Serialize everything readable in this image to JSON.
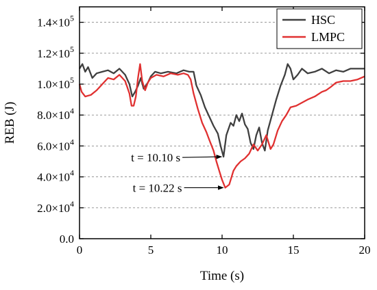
{
  "chart_data": {
    "type": "line",
    "xlabel": "Time (s)",
    "ylabel": "REB (J)",
    "xlim": [
      0,
      20
    ],
    "ylim": [
      0,
      150000
    ],
    "x_ticks": [
      {
        "value": 0,
        "label": "0"
      },
      {
        "value": 5,
        "label": "5"
      },
      {
        "value": 10,
        "label": "10"
      },
      {
        "value": 15,
        "label": "15"
      },
      {
        "value": 20,
        "label": "20"
      }
    ],
    "y_ticks": [
      {
        "value": 0,
        "base": "0.0",
        "exp": ""
      },
      {
        "value": 20000,
        "base": "2.0×10",
        "exp": "4"
      },
      {
        "value": 40000,
        "base": "4.0×10",
        "exp": "4"
      },
      {
        "value": 60000,
        "base": "6.0×10",
        "exp": "4"
      },
      {
        "value": 80000,
        "base": "8.0×10",
        "exp": "4"
      },
      {
        "value": 100000,
        "base": "1.0×10",
        "exp": "5"
      },
      {
        "value": 120000,
        "base": "1.2×10",
        "exp": "5"
      },
      {
        "value": 140000,
        "base": "1.4×10",
        "exp": "5"
      }
    ],
    "grid": "horizontal dashed",
    "legend_position": "top-right",
    "series": [
      {
        "name": "HSC",
        "color": "#3f3f3f",
        "points": [
          [
            0,
            110000
          ],
          [
            0.2,
            113000
          ],
          [
            0.4,
            108000
          ],
          [
            0.6,
            111000
          ],
          [
            0.9,
            104000
          ],
          [
            1.2,
            107000
          ],
          [
            1.6,
            108000
          ],
          [
            2.0,
            109000
          ],
          [
            2.4,
            107000
          ],
          [
            2.8,
            110000
          ],
          [
            3.2,
            106000
          ],
          [
            3.5,
            100000
          ],
          [
            3.7,
            92000
          ],
          [
            3.9,
            95000
          ],
          [
            4.1,
            99000
          ],
          [
            4.3,
            104000
          ],
          [
            4.5,
            97000
          ],
          [
            4.8,
            101000
          ],
          [
            5.0,
            105000
          ],
          [
            5.3,
            108000
          ],
          [
            5.7,
            107000
          ],
          [
            6.2,
            108000
          ],
          [
            6.8,
            107000
          ],
          [
            7.3,
            109000
          ],
          [
            7.7,
            108000
          ],
          [
            8.0,
            108000
          ],
          [
            8.2,
            99000
          ],
          [
            8.5,
            93000
          ],
          [
            8.8,
            85000
          ],
          [
            9.1,
            79000
          ],
          [
            9.4,
            73000
          ],
          [
            9.7,
            68000
          ],
          [
            9.9,
            60000
          ],
          [
            10.1,
            53000
          ],
          [
            10.3,
            67000
          ],
          [
            10.6,
            75000
          ],
          [
            10.8,
            73000
          ],
          [
            11.0,
            80000
          ],
          [
            11.2,
            76000
          ],
          [
            11.4,
            81000
          ],
          [
            11.6,
            74000
          ],
          [
            11.8,
            71000
          ],
          [
            12.0,
            62000
          ],
          [
            12.2,
            58000
          ],
          [
            12.4,
            67000
          ],
          [
            12.6,
            72000
          ],
          [
            12.8,
            62000
          ],
          [
            13.0,
            57000
          ],
          [
            13.2,
            70000
          ],
          [
            13.5,
            80000
          ],
          [
            13.8,
            90000
          ],
          [
            14.1,
            99000
          ],
          [
            14.4,
            106000
          ],
          [
            14.6,
            113000
          ],
          [
            14.8,
            110000
          ],
          [
            15.0,
            103000
          ],
          [
            15.3,
            106000
          ],
          [
            15.6,
            110000
          ],
          [
            16.0,
            107000
          ],
          [
            16.5,
            108000
          ],
          [
            17.0,
            110000
          ],
          [
            17.5,
            107000
          ],
          [
            18.0,
            109000
          ],
          [
            18.5,
            108000
          ],
          [
            19.0,
            110000
          ],
          [
            19.5,
            110000
          ],
          [
            20.0,
            110000
          ]
        ]
      },
      {
        "name": "LMPC",
        "color": "#e03030",
        "points": [
          [
            0,
            100000
          ],
          [
            0.15,
            95000
          ],
          [
            0.4,
            92000
          ],
          [
            0.8,
            93000
          ],
          [
            1.2,
            96000
          ],
          [
            1.6,
            100000
          ],
          [
            2.0,
            104000
          ],
          [
            2.4,
            103000
          ],
          [
            2.8,
            106000
          ],
          [
            3.2,
            102000
          ],
          [
            3.5,
            94000
          ],
          [
            3.65,
            86000
          ],
          [
            3.8,
            86000
          ],
          [
            3.95,
            92000
          ],
          [
            4.1,
            104000
          ],
          [
            4.25,
            113000
          ],
          [
            4.4,
            102000
          ],
          [
            4.6,
            96000
          ],
          [
            4.8,
            101000
          ],
          [
            5.0,
            104000
          ],
          [
            5.4,
            106000
          ],
          [
            5.9,
            105000
          ],
          [
            6.4,
            107000
          ],
          [
            6.9,
            106000
          ],
          [
            7.3,
            107000
          ],
          [
            7.6,
            106000
          ],
          [
            7.8,
            103000
          ],
          [
            8.0,
            94000
          ],
          [
            8.3,
            84000
          ],
          [
            8.6,
            75000
          ],
          [
            8.9,
            69000
          ],
          [
            9.1,
            64000
          ],
          [
            9.4,
            57000
          ],
          [
            9.6,
            50000
          ],
          [
            9.8,
            44000
          ],
          [
            10.0,
            38000
          ],
          [
            10.22,
            33000
          ],
          [
            10.5,
            35000
          ],
          [
            10.8,
            44000
          ],
          [
            11.0,
            47000
          ],
          [
            11.3,
            50000
          ],
          [
            11.6,
            52000
          ],
          [
            11.9,
            55000
          ],
          [
            12.2,
            61000
          ],
          [
            12.5,
            57000
          ],
          [
            12.8,
            61000
          ],
          [
            13.1,
            67000
          ],
          [
            13.4,
            58000
          ],
          [
            13.6,
            61000
          ],
          [
            13.9,
            70000
          ],
          [
            14.2,
            76000
          ],
          [
            14.5,
            80000
          ],
          [
            14.8,
            85000
          ],
          [
            15.2,
            86000
          ],
          [
            15.6,
            88000
          ],
          [
            16.0,
            90000
          ],
          [
            16.5,
            92000
          ],
          [
            17.0,
            95000
          ],
          [
            17.3,
            96000
          ],
          [
            17.6,
            98000
          ],
          [
            18.0,
            101000
          ],
          [
            18.5,
            102000
          ],
          [
            19.0,
            102000
          ],
          [
            19.5,
            103000
          ],
          [
            20.0,
            105000
          ]
        ]
      }
    ],
    "annotations": [
      {
        "text": "t = 10.10 s",
        "x": 10.1,
        "y": 53000
      },
      {
        "text": "t = 10.22 s",
        "x": 10.22,
        "y": 33000
      }
    ]
  }
}
